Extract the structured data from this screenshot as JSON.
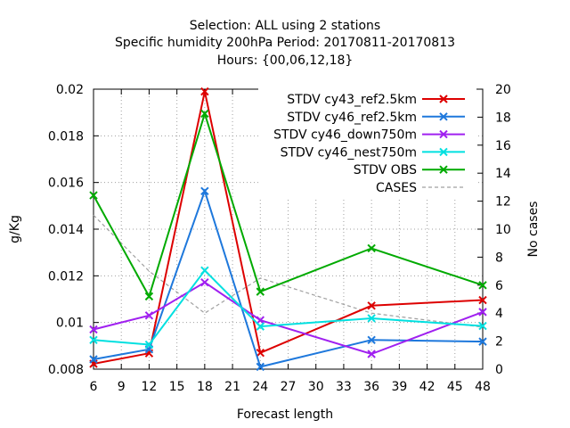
{
  "chart_data": {
    "type": "line",
    "title_lines": [
      "Selection: ALL using     2 stations",
      "Specific humidity 200hPa   Period: 20170811-20170813",
      "Hours: {00,06,12,18}"
    ],
    "xlabel": "Forecast length",
    "ylabel": "g/Kg",
    "y2label": "No cases",
    "xlim": [
      6,
      48
    ],
    "ylim": [
      0.008,
      0.02
    ],
    "y2lim": [
      0,
      20
    ],
    "x_ticks": [
      6,
      9,
      12,
      15,
      18,
      21,
      24,
      27,
      30,
      33,
      36,
      39,
      42,
      45,
      48
    ],
    "y_ticks": [
      "0.008",
      "0.01",
      "0.012",
      "0.014",
      "0.016",
      "0.018",
      "0.02"
    ],
    "y2_ticks": [
      0,
      2,
      4,
      6,
      8,
      10,
      12,
      14,
      16,
      18,
      20
    ],
    "grid": true,
    "legend_position": "top-right",
    "x": [
      6,
      12,
      18,
      24,
      36,
      48
    ],
    "series": [
      {
        "name": "STDV cy43_ref2.5km",
        "color": "#dd0000",
        "axis": "y1",
        "marker": "x",
        "values": [
          0.00823,
          0.00868,
          0.0199,
          0.0087,
          0.01072,
          0.01096
        ]
      },
      {
        "name": "STDV cy46_ref2.5km",
        "color": "#1e78dc",
        "axis": "y1",
        "marker": "x",
        "values": [
          0.00842,
          0.00885,
          0.01563,
          0.0081,
          0.00925,
          0.00918
        ]
      },
      {
        "name": "STDV cy46_down750m",
        "color": "#a020f0",
        "axis": "y1",
        "marker": "x",
        "values": [
          0.0097,
          0.0103,
          0.01172,
          0.0101,
          0.00865,
          0.01045
        ]
      },
      {
        "name": "STDV cy46_nest750m",
        "color": "#00e0e0",
        "axis": "y1",
        "marker": "x",
        "values": [
          0.00925,
          0.00905,
          0.01223,
          0.00983,
          0.01018,
          0.00985
        ]
      },
      {
        "name": "STDV OBS",
        "color": "#00aa00",
        "axis": "y1",
        "marker": "x",
        "values": [
          0.01545,
          0.01112,
          0.01895,
          0.01132,
          0.01318,
          0.0116
        ]
      },
      {
        "name": "CASES",
        "color": "#a0a0a0",
        "axis": "y2",
        "dashed": true,
        "values": [
          11.0,
          7.0,
          4.0,
          6.5,
          4.0,
          3.0
        ]
      }
    ]
  }
}
